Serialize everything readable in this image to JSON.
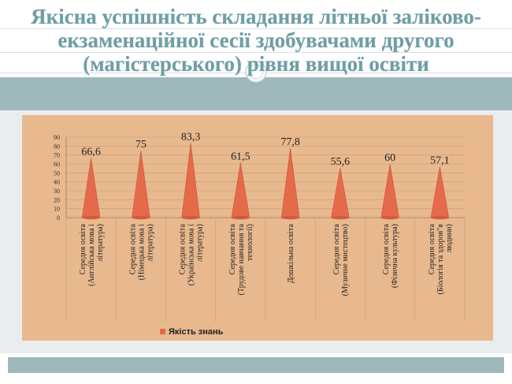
{
  "slide": {
    "title": "Якісна успішність складання літньої заліково-екзаменаційної сесії здобувачами другого (магістерського) рівня вищої освіти",
    "colors": {
      "title": "#6f9ea3",
      "band": "#9fb8bc",
      "chart_bg": "#e8b98e",
      "bar": "#e46a4a"
    }
  },
  "chart_data": {
    "type": "bar",
    "bar_shape": "cone",
    "categories": [
      "Середня освіта (Англійська мова і література)",
      "Середня освіта (Німецька мова і література)",
      "Середня освіта (Українська мова і література)",
      "Середня освіта (Трудове навчання та технології)",
      "Дошкільна освіта",
      "Середня освіта (Музичне мистецтво)",
      "Середня освіта (Фізична культура)",
      "Середня освіта (Біологія та здоров\"я людини)"
    ],
    "category_lines": [
      [
        "Середня освіта",
        "(Англійська мова і",
        "література)"
      ],
      [
        "Середня освіта",
        "(Німецька мова і",
        "література)"
      ],
      [
        "Середня освіта",
        "(Українська мова і",
        "література)"
      ],
      [
        "Середня освіта",
        "(Трудове навчання та",
        "технології)"
      ],
      [
        "Дошкільна освіта"
      ],
      [
        "Середня освіта",
        "(Музичне мистецтво)"
      ],
      [
        "Середня освіта",
        "(Фізична культура)"
      ],
      [
        "Середня освіта",
        "(Біологія та здоров\"я",
        "людини)"
      ]
    ],
    "series": [
      {
        "name": "Якість знань",
        "values": [
          66.6,
          75,
          83.3,
          61.5,
          77.8,
          55.6,
          60,
          57.1
        ]
      }
    ],
    "data_labels": [
      "66,6",
      "75",
      "83,3",
      "61,5",
      "77,8",
      "55,6",
      "60",
      "57,1"
    ],
    "y_ticks": [
      "0",
      "10",
      "20",
      "30",
      "40",
      "50",
      "60",
      "70",
      "80",
      "90"
    ],
    "ylim": [
      0,
      90
    ],
    "grid": true,
    "legend_position": "bottom-left"
  }
}
